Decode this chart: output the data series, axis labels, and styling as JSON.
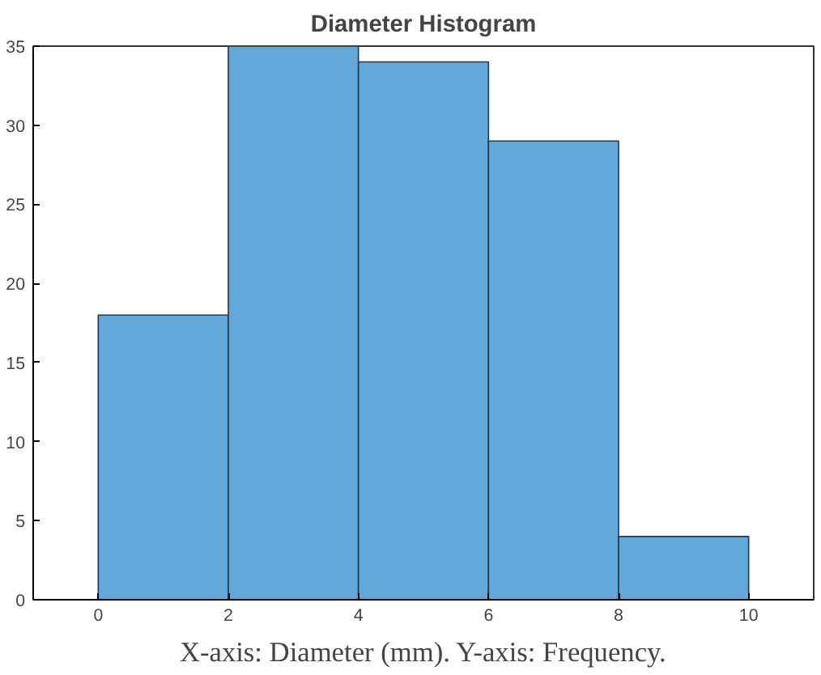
{
  "chart_data": {
    "type": "histogram",
    "title": "Diameter Histogram",
    "bins": [
      0,
      2,
      4,
      6,
      8,
      10
    ],
    "values": [
      18,
      35,
      34,
      29,
      4
    ],
    "color": "#62a8d8",
    "xlim": [
      -1,
      11
    ],
    "xticks": [
      0,
      2,
      4,
      6,
      8,
      10
    ],
    "ylim": [
      0,
      35
    ],
    "yticks": [
      0,
      5,
      10,
      15,
      20,
      25,
      30,
      35
    ],
    "grid": false,
    "annotations": [
      "X-axis: Diameter (mm). Y-axis: Frequency."
    ]
  }
}
